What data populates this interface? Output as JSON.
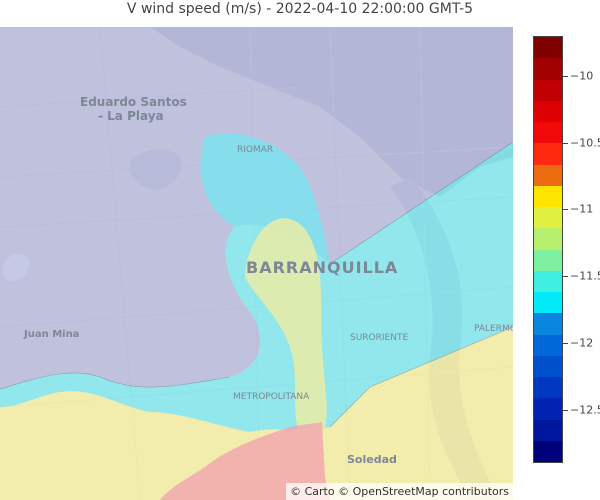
{
  "title": "V wind speed (m/s) - 2022-04-10 22:00:00 GMT-5",
  "map": {
    "places": [
      {
        "name": "eduardo-santos-label",
        "text": "Eduardo Santos",
        "size": "large"
      },
      {
        "name": "la-playa-label",
        "text": "- La Playa",
        "size": "large"
      },
      {
        "name": "riomar-label",
        "text": "RIOMAR",
        "size": "small"
      },
      {
        "name": "barranquilla-label",
        "text": "BARRANQUILLA",
        "size": "city"
      },
      {
        "name": "juan-mina-label",
        "text": "Juan Mina",
        "size": "medium"
      },
      {
        "name": "suroriente-label",
        "text": "SURORIENTE",
        "size": "small"
      },
      {
        "name": "palermo-label",
        "text": "PALERMO",
        "size": "small"
      },
      {
        "name": "metropolitana-label",
        "text": "METROPOLITANA",
        "size": "small"
      },
      {
        "name": "soledad-label",
        "text": "Soledad",
        "size": "medium"
      }
    ],
    "attribution": "© Carto © OpenStreetMap contributors"
  },
  "regions": [
    {
      "name": "region-lavender",
      "value": -11.0,
      "color": "#b0b4dc"
    },
    {
      "name": "region-cyan",
      "value": -11.5,
      "color": "#6fe8f0"
    },
    {
      "name": "region-yellow",
      "value": -12.1,
      "color": "#f6ee9c"
    },
    {
      "name": "region-pink",
      "value": -12.4,
      "color": "#f2a0b0"
    }
  ],
  "colorbar": {
    "min": -12.9,
    "max": -9.7,
    "colors": [
      "#00007a",
      "#00169c",
      "#0024b0",
      "#0037c0",
      "#0050cc",
      "#0068d8",
      "#0a86e0",
      "#00eafa",
      "#3fefe0",
      "#7ef0a0",
      "#b8ef6c",
      "#e0f040",
      "#ffe400",
      "#ec6b10",
      "#ff2a10",
      "#f20a0a",
      "#dd0000",
      "#c00000",
      "#a00000",
      "#800000"
    ],
    "ticks": [
      {
        "value": -10,
        "label": "−10"
      },
      {
        "value": -10.5,
        "label": "−10.5"
      },
      {
        "value": -11,
        "label": "−11"
      },
      {
        "value": -11.5,
        "label": "−11.5"
      },
      {
        "value": -12,
        "label": "−12"
      },
      {
        "value": -12.5,
        "label": "−12.5"
      }
    ]
  }
}
